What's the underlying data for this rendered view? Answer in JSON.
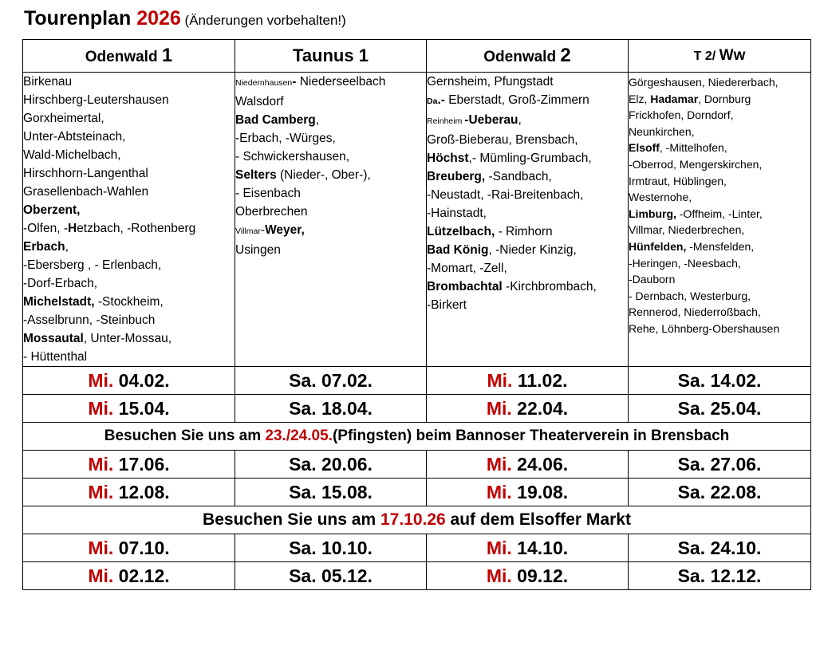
{
  "title": {
    "main": "Tourenplan ",
    "year": "2026",
    "note": " (Änderungen vorbehalten!)"
  },
  "columns": [
    {
      "name": "Odenwald ",
      "num": "1"
    },
    {
      "name": "Taunus 1"
    },
    {
      "name": "Odenwald ",
      "num": "2"
    },
    {
      "name": "T 2/ ",
      "num": "Ww"
    }
  ],
  "places": {
    "col1": [
      "Birkenau",
      "Hirschberg-Leutershausen",
      "Gorxheimertal,",
      "Unter-Abtsteinach,",
      "Wald-Michelbach,",
      "Hirschhorn-Langenthal",
      "Grasellenbach-Wahlen",
      "Oberzent,",
      " -Olfen,  -",
      "H",
      "etzbach, -Rothenberg",
      "Erbach",
      ",",
      "-Ebersberg , - Erlenbach,",
      " -Dorf-Erbach,",
      "Michelstadt,",
      " -Stockheim,",
      " -Asselbrunn,  -Steinbuch",
      "Mossautal",
      ", Unter-Mossau,",
      "- Hüttenthal"
    ],
    "col2": [
      "Niedernhausen",
      "- ",
      "Niederseelbach",
      "Walsdorf",
      "Bad Camberg",
      ",",
      "-Erbach,  -Würges,",
      "- Schwickershausen,",
      "Selters",
      " (Nieder-, Ober-),",
      "- Eisenbach",
      "Oberbrechen",
      "Villmar",
      "-",
      "Weyer,",
      "Usingen"
    ],
    "col3": [
      "Gernsheim, Pfungstadt",
      "Da",
      ".- ",
      "Eberstadt, Groß-Zimmern",
      "Reinheim ",
      "-Ueberau",
      ",",
      "Groß-Bieberau, Brensbach,",
      "Höchst",
      ",- Mümling-Grumbach,",
      "Breuberg,",
      " -Sandbach,",
      "-Neustadt, -Rai-Breitenbach,",
      "-Hainstadt,",
      "Lützelbach,",
      " - Rimhorn",
      "Bad König",
      ", -Nieder Kinzig,",
      "-Momart, -Zell,",
      "Brombachtal",
      " -Kirchbrombach,",
      "-Birkert"
    ],
    "col4": [
      "Görgeshausen, Niedererbach,",
      "Elz, ",
      "Hadamar",
      ", Dornburg",
      "Frickhofen, Dorndorf,",
      "Neunkirchen,",
      "Elsoff",
      ", -Mittelhofen,",
      "-Oberrod, Mengerskirchen,",
      "Irmtraut, Hüblingen,",
      "Westernohe,",
      "Limburg,",
      " -Offheim, -Linter,",
      "Villmar, Niederbrechen,",
      "Hünfelden,",
      " -Mensfelden,",
      "-Heringen, -Neesbach,",
      "-Dauborn",
      "- Dernbach, Westerburg,",
      "Rennerod, Niederroßbach,",
      "Rehe, Löhnberg-Obershausen"
    ]
  },
  "rows": [
    [
      {
        "wd": "Mi.",
        "d": " 04.02."
      },
      {
        "d": "Sa. 07.02."
      },
      {
        "wd": "Mi.",
        "d": " 11.02."
      },
      {
        "d": "Sa. 14.02."
      }
    ],
    [
      {
        "wd": "Mi.",
        "d": " 15.04."
      },
      {
        "d": "Sa. 18.04."
      },
      {
        "wd": "Mi.",
        "d": " 22.04."
      },
      {
        "d": "Sa. 25.04."
      }
    ],
    [
      {
        "wd": "Mi.",
        "d": " 17.06."
      },
      {
        "d": "Sa. 20.06."
      },
      {
        "wd": "Mi.",
        "d": " 24.06."
      },
      {
        "d": "Sa. 27.06."
      }
    ],
    [
      {
        "wd": "Mi.",
        "d": " 12.08."
      },
      {
        "d": "Sa. 15.08."
      },
      {
        "wd": "Mi.",
        "d": " 19.08."
      },
      {
        "d": "Sa. 22.08."
      }
    ],
    [
      {
        "wd": "Mi.",
        "d": " 07.10."
      },
      {
        "d": "Sa. 10.10."
      },
      {
        "wd": "Mi.",
        "d": " 14.10."
      },
      {
        "d": "Sa. 24.10."
      }
    ],
    [
      {
        "wd": "Mi.",
        "d": " 02.12."
      },
      {
        "d": "Sa. 05.12."
      },
      {
        "wd": "Mi.",
        "d": " 09.12."
      },
      {
        "d": "Sa. 12.12."
      }
    ]
  ],
  "banners": [
    {
      "pre": "Besuchen Sie uns am ",
      "date": "23./24.05.",
      "post": "(Pfingsten) beim Bannoser Theaterverein in Brensbach"
    },
    {
      "pre": "Besuchen Sie uns am ",
      "date": "17.10.26",
      "post": " auf dem Elsoffer Markt"
    }
  ],
  "colors": {
    "accent_red": "#c00000",
    "border": "#000000"
  }
}
